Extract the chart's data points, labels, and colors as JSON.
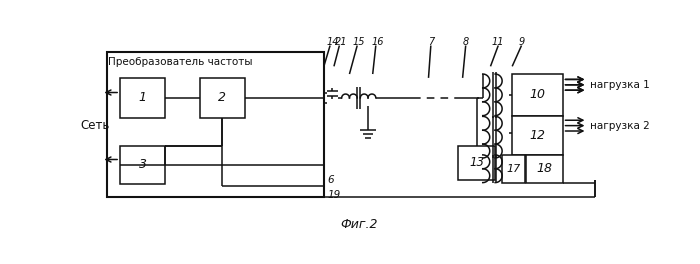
{
  "bg": "#ffffff",
  "black": "#111111",
  "title": "Фиг.2",
  "label_pch": "Преобразователь частоты",
  "label_set": "Сеть",
  "label_n1": "нагрузка 1",
  "label_n2": "нагрузка 2"
}
